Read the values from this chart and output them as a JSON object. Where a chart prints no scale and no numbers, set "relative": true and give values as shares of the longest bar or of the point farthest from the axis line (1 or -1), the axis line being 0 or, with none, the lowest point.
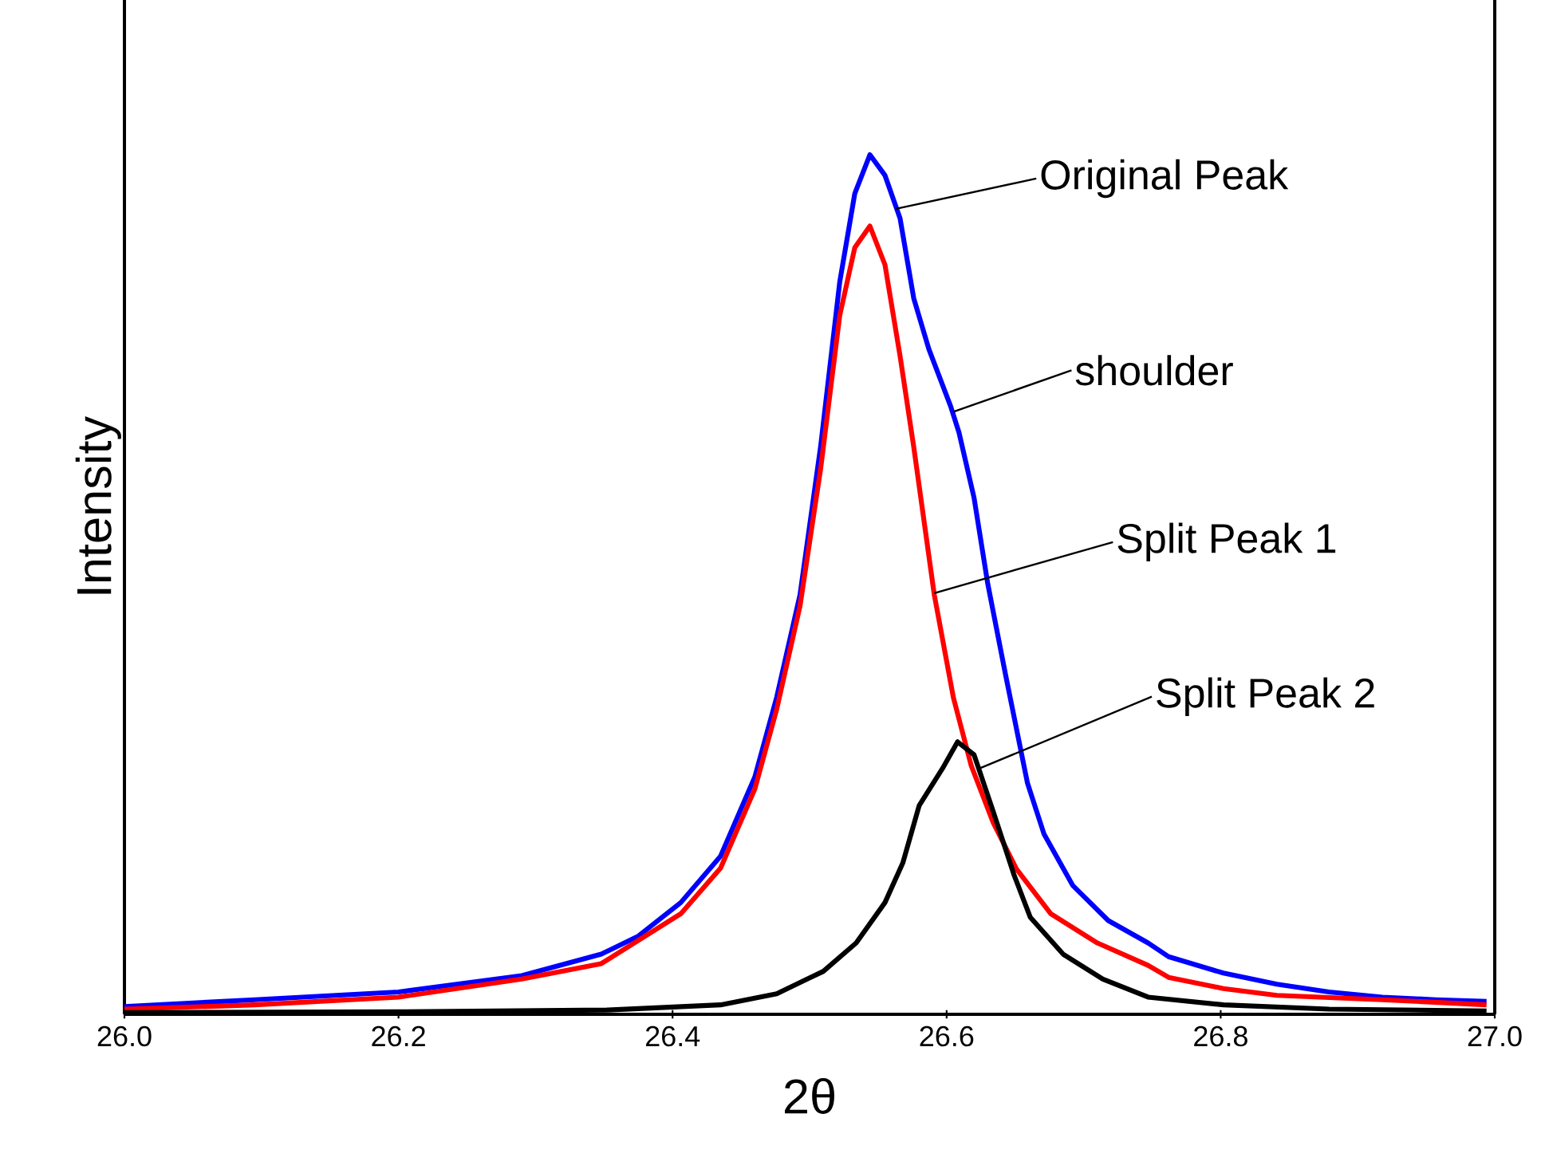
{
  "chart_data": {
    "type": "line",
    "relative": true,
    "xlabel": "2θ",
    "ylabel": "Intensity",
    "xlim": [
      26.0,
      27.0
    ],
    "xticks": [
      {
        "value": 26.0,
        "label": "26.0"
      },
      {
        "value": 26.2,
        "label": "26.2"
      },
      {
        "value": 26.4,
        "label": "26.4"
      },
      {
        "value": 26.6,
        "label": "26.6"
      },
      {
        "value": 26.8,
        "label": "26.8"
      },
      {
        "value": 27.0,
        "label": "27.0"
      }
    ],
    "line_style": "solid",
    "marker": "none",
    "grid": false,
    "legend": false,
    "series": [
      {
        "color": "#0000ff",
        "x": [
          26.0,
          26.095,
          26.2,
          26.29,
          26.348,
          26.375,
          26.406,
          26.435,
          26.46,
          26.476,
          26.493,
          26.508,
          26.522,
          26.533,
          26.544,
          26.555,
          26.566,
          26.576,
          26.587,
          26.603,
          26.609,
          26.62,
          26.63,
          26.643,
          26.659,
          26.671,
          26.692,
          26.718,
          26.747,
          26.762,
          26.802,
          26.841,
          26.879,
          26.918,
          26.957,
          26.994
        ],
        "values": [
          0.009,
          0.017,
          0.026,
          0.045,
          0.07,
          0.091,
          0.13,
          0.184,
          0.276,
          0.369,
          0.488,
          0.66,
          0.852,
          0.955,
          1.0,
          0.976,
          0.926,
          0.833,
          0.774,
          0.707,
          0.677,
          0.601,
          0.501,
          0.395,
          0.269,
          0.21,
          0.15,
          0.109,
          0.083,
          0.067,
          0.048,
          0.035,
          0.026,
          0.02,
          0.017,
          0.015
        ]
      },
      {
        "color": "#ff0000",
        "x": [
          26.0,
          26.095,
          26.2,
          26.29,
          26.348,
          26.406,
          26.435,
          26.46,
          26.476,
          26.493,
          26.508,
          26.522,
          26.533,
          26.544,
          26.555,
          26.566,
          26.576,
          26.591,
          26.605,
          26.618,
          26.634,
          26.651,
          26.676,
          26.71,
          26.747,
          26.762,
          26.802,
          26.841,
          26.918,
          26.994
        ],
        "values": [
          0.006,
          0.011,
          0.02,
          0.041,
          0.059,
          0.117,
          0.17,
          0.262,
          0.355,
          0.475,
          0.634,
          0.813,
          0.892,
          0.917,
          0.872,
          0.766,
          0.66,
          0.488,
          0.368,
          0.289,
          0.223,
          0.169,
          0.117,
          0.083,
          0.057,
          0.043,
          0.03,
          0.022,
          0.017,
          0.011
        ]
      },
      {
        "color": "#000000",
        "x": [
          26.0,
          26.2,
          26.352,
          26.435,
          26.476,
          26.51,
          26.534,
          26.555,
          26.568,
          26.58,
          26.597,
          26.608,
          26.62,
          26.634,
          26.649,
          26.661,
          26.685,
          26.714,
          26.747,
          26.802,
          26.879,
          26.994
        ],
        "values": [
          0.002,
          0.003,
          0.005,
          0.011,
          0.024,
          0.05,
          0.083,
          0.13,
          0.176,
          0.243,
          0.286,
          0.317,
          0.302,
          0.236,
          0.163,
          0.113,
          0.07,
          0.041,
          0.02,
          0.011,
          0.006,
          0.004
        ]
      }
    ],
    "annotations": [
      {
        "text": "Original Peak",
        "x": 26.563,
        "y": 0.937
      },
      {
        "text": "shoulder",
        "x": 26.605,
        "y": 0.701
      },
      {
        "text": "Split Peak 1",
        "x": 26.591,
        "y": 0.49
      },
      {
        "text": "Split Peak 2",
        "x": 26.624,
        "y": 0.286
      }
    ]
  }
}
